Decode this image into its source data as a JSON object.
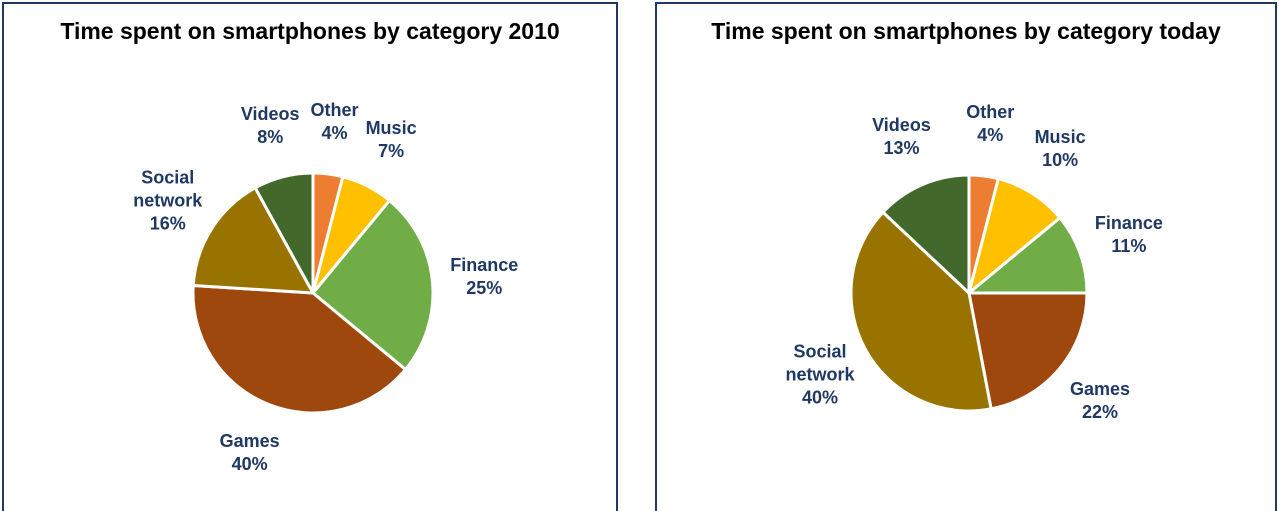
{
  "chart_data": [
    {
      "type": "pie",
      "title": "Time spent on smartphones by category 2010",
      "categories": [
        "Other",
        "Music",
        "Finance",
        "Games",
        "Social network",
        "Videos"
      ],
      "values": [
        4,
        7,
        25,
        40,
        16,
        8
      ],
      "value_labels": [
        "4%",
        "7%",
        "25%",
        "40%",
        "16%",
        "8%"
      ],
      "colors": [
        "#ed7d31",
        "#ffc000",
        "#70ad47",
        "#9e480e",
        "#997300",
        "#43682b"
      ]
    },
    {
      "type": "pie",
      "title": "Time spent on smartphones by category today",
      "categories": [
        "Other",
        "Music",
        "Finance",
        "Games",
        "Social network",
        "Videos"
      ],
      "values": [
        4,
        10,
        11,
        22,
        40,
        13
      ],
      "value_labels": [
        "4%",
        "10%",
        "11%",
        "22%",
        "40%",
        "13%"
      ],
      "colors": [
        "#ed7d31",
        "#ffc000",
        "#70ad47",
        "#9e480e",
        "#997300",
        "#43682b"
      ]
    }
  ]
}
